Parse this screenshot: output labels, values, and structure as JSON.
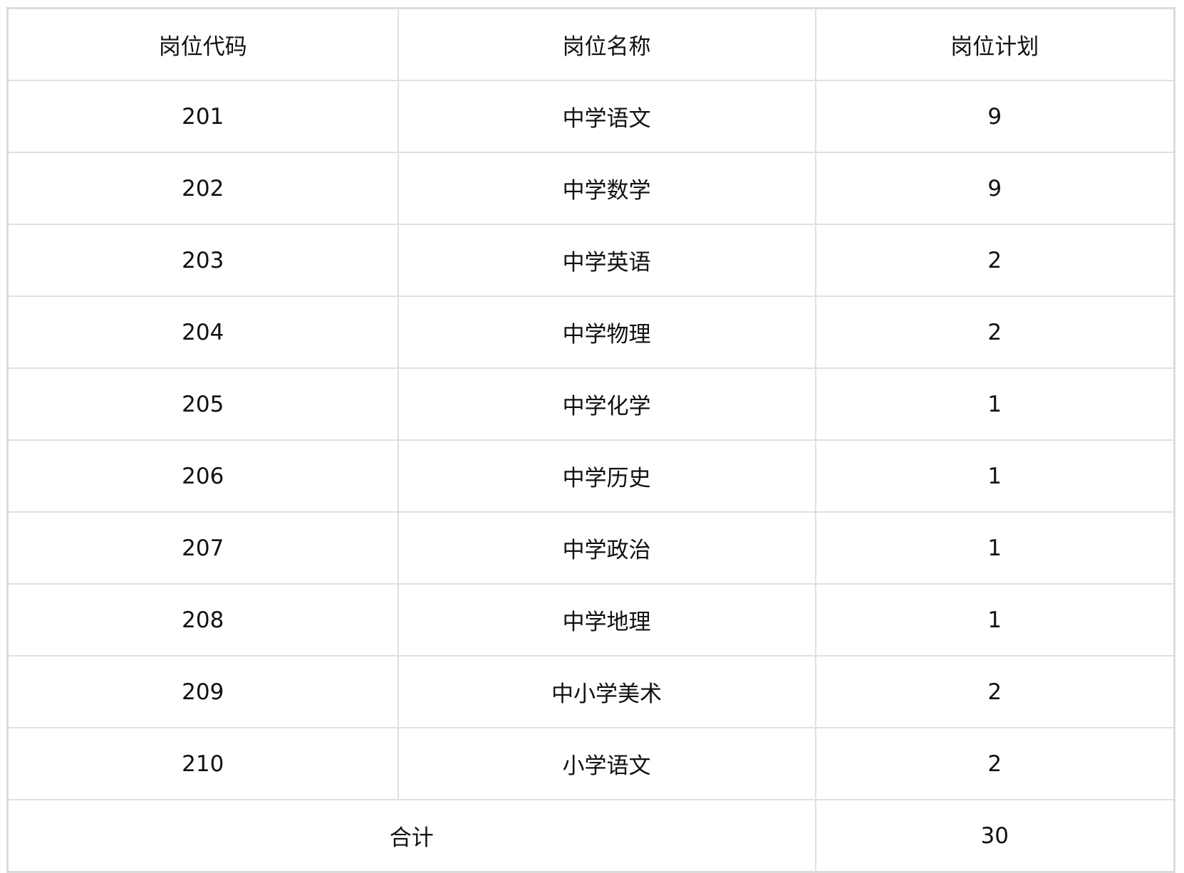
{
  "table": {
    "headers": [
      "岗位代码",
      "岗位名称",
      "岗位计划"
    ],
    "rows": [
      [
        "201",
        "中学语文",
        "9"
      ],
      [
        "202",
        "中学数学",
        "9"
      ],
      [
        "203",
        "中学英语",
        "2"
      ],
      [
        "204",
        "中学物理",
        "2"
      ],
      [
        "205",
        "中学化学",
        "1"
      ],
      [
        "206",
        "中学历史",
        "1"
      ],
      [
        "207",
        "中学政治",
        "1"
      ],
      [
        "208",
        "中学地理",
        "1"
      ],
      [
        "209",
        "中小学美术",
        "2"
      ],
      [
        "210",
        "小学语文",
        "2"
      ]
    ],
    "total_label": "合计",
    "total_value": "30"
  }
}
